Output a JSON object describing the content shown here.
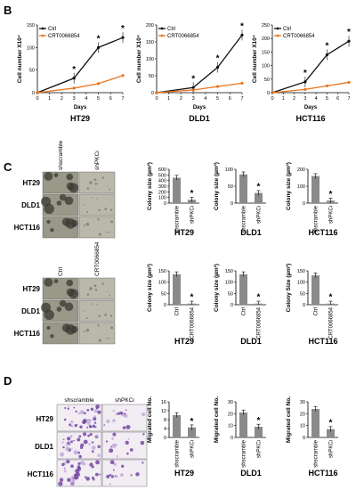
{
  "panels": {
    "B": "B",
    "C": "C",
    "D": "D"
  },
  "colors": {
    "ctrl": "#111111",
    "treat": "#e8761f",
    "bar": "#8a8a8a"
  },
  "legend": {
    "ctrl": "Ctrl",
    "treat": "CRT0066854"
  },
  "row_labels": [
    "HT29",
    "DLD1",
    "HCT116"
  ],
  "col_labels": {
    "c1": [
      "shscramble",
      "shPKCι"
    ],
    "c2": [
      "Ctrl",
      "CRT0066854"
    ],
    "d": [
      "shscramble",
      "shPKCι"
    ]
  },
  "chart_data": [
    {
      "id": "b1",
      "type": "line",
      "title": "HT29",
      "xlabel": "Days",
      "ylabel": "Cell number X10⁴",
      "xlim": [
        0,
        7
      ],
      "ylim": [
        0,
        150
      ],
      "xticks": [
        0,
        1,
        2,
        3,
        4,
        5,
        6,
        7
      ],
      "yticks": [
        0,
        50,
        100,
        150
      ],
      "x": [
        0,
        3,
        5,
        7
      ],
      "legend_position": "top-left",
      "series": [
        {
          "name": "Ctrl",
          "values": [
            0,
            32,
            100,
            122
          ]
        },
        {
          "name": "CRT0066854",
          "values": [
            0,
            10,
            20,
            38
          ]
        }
      ],
      "annotations": [
        "*",
        "*",
        "*"
      ]
    },
    {
      "id": "b2",
      "type": "line",
      "title": "DLD1",
      "xlabel": "Days",
      "ylabel": "Cell number X10⁴",
      "xlim": [
        0,
        7
      ],
      "ylim": [
        0,
        200
      ],
      "xticks": [
        0,
        1,
        2,
        3,
        4,
        5,
        6,
        7
      ],
      "yticks": [
        0,
        50,
        100,
        150,
        200
      ],
      "x": [
        0,
        3,
        5,
        7
      ],
      "legend_position": "top-left",
      "series": [
        {
          "name": "Ctrl",
          "values": [
            0,
            15,
            75,
            170
          ]
        },
        {
          "name": "CRT0066854",
          "values": [
            0,
            8,
            18,
            28
          ]
        }
      ],
      "annotations": [
        "*",
        "*",
        "*"
      ]
    },
    {
      "id": "b3",
      "type": "line",
      "title": "HCT116",
      "xlabel": "Days",
      "ylabel": "Cell number X10⁴",
      "xlim": [
        0,
        7
      ],
      "ylim": [
        0,
        250
      ],
      "xticks": [
        0,
        1,
        2,
        3,
        4,
        5,
        6,
        7
      ],
      "yticks": [
        0,
        50,
        100,
        150,
        200,
        250
      ],
      "x": [
        0,
        3,
        5,
        7
      ],
      "legend_position": "top-left",
      "series": [
        {
          "name": "Ctrl",
          "values": [
            0,
            40,
            140,
            190
          ]
        },
        {
          "name": "CRT0066854",
          "values": [
            0,
            12,
            25,
            38
          ]
        }
      ],
      "annotations": [
        "*",
        "*",
        "*"
      ]
    },
    {
      "id": "c1a",
      "type": "bar",
      "title": "HT29",
      "ylabel": "Colony size (µm²)",
      "categories": [
        "shscramble",
        "shPKCι"
      ],
      "values": [
        450,
        60
      ],
      "ylim": [
        0,
        600
      ],
      "yticks": [
        0,
        100,
        200,
        300,
        400,
        500,
        600
      ],
      "annotations": [
        "*"
      ]
    },
    {
      "id": "c1b",
      "type": "bar",
      "title": "DLD1",
      "ylabel": "Colony size (µm²)",
      "categories": [
        "shscramble",
        "shPKCι"
      ],
      "values": [
        85,
        30
      ],
      "ylim": [
        0,
        100
      ],
      "yticks": [
        0,
        50,
        100
      ],
      "annotations": [
        "*"
      ]
    },
    {
      "id": "c1c",
      "type": "bar",
      "title": "HCT116",
      "ylabel": "Colony size (µm²)",
      "categories": [
        "shscramble",
        "shPKCι"
      ],
      "values": [
        160,
        15
      ],
      "ylim": [
        0,
        200
      ],
      "yticks": [
        0,
        100,
        200
      ],
      "annotations": [
        "*"
      ]
    },
    {
      "id": "c2a",
      "type": "bar",
      "title": "HT29",
      "ylabel": "Colony size (µm²)",
      "categories": [
        "Ctrl",
        "CRT0066854"
      ],
      "values": [
        135,
        5
      ],
      "ylim": [
        0,
        150
      ],
      "yticks": [
        0,
        50,
        100,
        150
      ],
      "annotations": [
        "*"
      ]
    },
    {
      "id": "c2b",
      "type": "bar",
      "title": "DLD1",
      "ylabel": "Colony size (µm²)",
      "categories": [
        "Ctrl",
        "CRT0066854"
      ],
      "values": [
        135,
        5
      ],
      "ylim": [
        0,
        150
      ],
      "yticks": [
        0,
        50,
        100,
        150
      ],
      "annotations": [
        "*"
      ]
    },
    {
      "id": "c2c",
      "type": "bar",
      "title": "HCT116",
      "ylabel": "Colony Size (µm²)",
      "categories": [
        "Ctrl",
        "CRT0066854"
      ],
      "values": [
        130,
        5
      ],
      "ylim": [
        0,
        150
      ],
      "yticks": [
        0,
        50,
        100,
        150
      ],
      "annotations": [
        "*"
      ]
    },
    {
      "id": "d1",
      "type": "bar",
      "title": "HT29",
      "ylabel": "Migrated cell No.",
      "categories": [
        "shscramble",
        "shPKCι"
      ],
      "values": [
        10,
        4.5
      ],
      "ylim": [
        0,
        16
      ],
      "yticks": [
        0,
        4,
        8,
        12,
        16
      ],
      "annotations": [
        "*"
      ]
    },
    {
      "id": "d2",
      "type": "bar",
      "title": "DLD1",
      "ylabel": "Migrated cell No.",
      "categories": [
        "shscramble",
        "shPKCι"
      ],
      "values": [
        21,
        9
      ],
      "ylim": [
        0,
        30
      ],
      "yticks": [
        0,
        10,
        20,
        30
      ],
      "annotations": [
        "*"
      ]
    },
    {
      "id": "d3",
      "type": "bar",
      "title": "HCT116",
      "ylabel": "Migrated cell No.",
      "categories": [
        "shscramble",
        "shPKCι"
      ],
      "values": [
        24,
        7
      ],
      "ylim": [
        0,
        30
      ],
      "yticks": [
        0,
        10,
        20,
        30
      ],
      "annotations": [
        "*"
      ]
    }
  ]
}
